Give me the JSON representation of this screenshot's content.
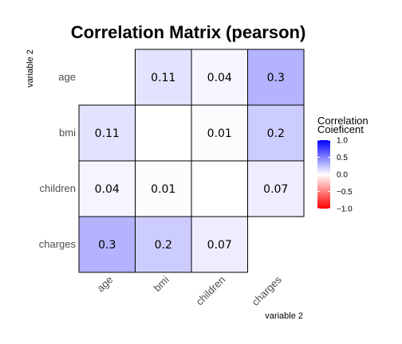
{
  "chart_data": {
    "type": "heatmap",
    "title": "Correlation Matrix (pearson)",
    "xlabel": "variable 2",
    "ylabel": "variable 2",
    "variables": [
      "age",
      "bmi",
      "children",
      "charges"
    ],
    "cells": [
      {
        "row": "age",
        "col": "bmi",
        "value": 0.11,
        "label": "0.11"
      },
      {
        "row": "age",
        "col": "children",
        "value": 0.04,
        "label": "0.04"
      },
      {
        "row": "age",
        "col": "charges",
        "value": 0.3,
        "label": "0.3"
      },
      {
        "row": "bmi",
        "col": "age",
        "value": 0.11,
        "label": "0.11"
      },
      {
        "row": "bmi",
        "col": "children",
        "value": 0.01,
        "label": "0.01"
      },
      {
        "row": "bmi",
        "col": "charges",
        "value": 0.2,
        "label": "0.2"
      },
      {
        "row": "children",
        "col": "age",
        "value": 0.04,
        "label": "0.04"
      },
      {
        "row": "children",
        "col": "bmi",
        "value": 0.01,
        "label": "0.01"
      },
      {
        "row": "children",
        "col": "charges",
        "value": 0.07,
        "label": "0.07"
      },
      {
        "row": "charges",
        "col": "age",
        "value": 0.3,
        "label": "0.3"
      },
      {
        "row": "charges",
        "col": "bmi",
        "value": 0.2,
        "label": "0.2"
      },
      {
        "row": "charges",
        "col": "children",
        "value": 0.07,
        "label": "0.07"
      }
    ],
    "legend": {
      "title_lines": [
        "Correlation",
        "Coieficent"
      ],
      "ticks": [
        1.0,
        0.5,
        0.0,
        -0.5,
        -1.0
      ],
      "tick_labels": [
        "1.0",
        "0.5",
        "0.0",
        "−0.5",
        "−1.0"
      ],
      "placement": "right",
      "range": [
        -1,
        1
      ]
    },
    "colors": {
      "high": "#0000ff",
      "mid": "#ffffff",
      "low": "#ff0000",
      "cell_border": "#000000"
    }
  }
}
